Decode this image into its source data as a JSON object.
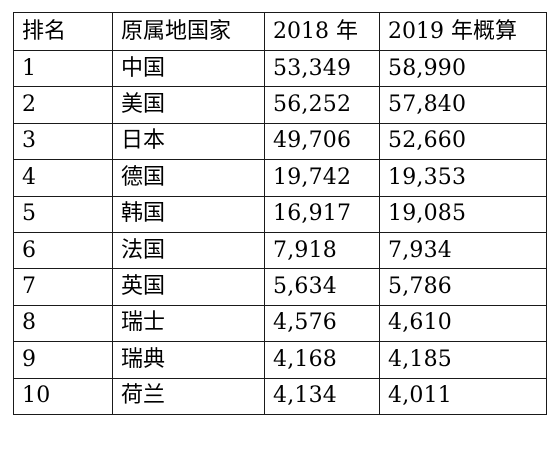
{
  "table": {
    "headers": [
      "排名",
      "原属地国家",
      "2018 年",
      "2019 年概算"
    ],
    "rows": [
      {
        "rank": "1",
        "country": "中国",
        "y2018": "53,349",
        "y2019": "58,990"
      },
      {
        "rank": "2",
        "country": "美国",
        "y2018": "56,252",
        "y2019": "57,840"
      },
      {
        "rank": "3",
        "country": "日本",
        "y2018": "49,706",
        "y2019": "52,660"
      },
      {
        "rank": "4",
        "country": "德国",
        "y2018": "19,742",
        "y2019": "19,353"
      },
      {
        "rank": "5",
        "country": "韩国",
        "y2018": "16,917",
        "y2019": "19,085"
      },
      {
        "rank": "6",
        "country": "法国",
        "y2018": "7,918",
        "y2019": "7,934"
      },
      {
        "rank": "7",
        "country": "英国",
        "y2018": "5,634",
        "y2019": "5,786"
      },
      {
        "rank": "8",
        "country": "瑞士",
        "y2018": "4,576",
        "y2019": "4,610"
      },
      {
        "rank": "9",
        "country": "瑞典",
        "y2018": "4,168",
        "y2019": "4,185"
      },
      {
        "rank": "10",
        "country": "荷兰",
        "y2018": "4,134",
        "y2019": "4,011"
      }
    ]
  }
}
